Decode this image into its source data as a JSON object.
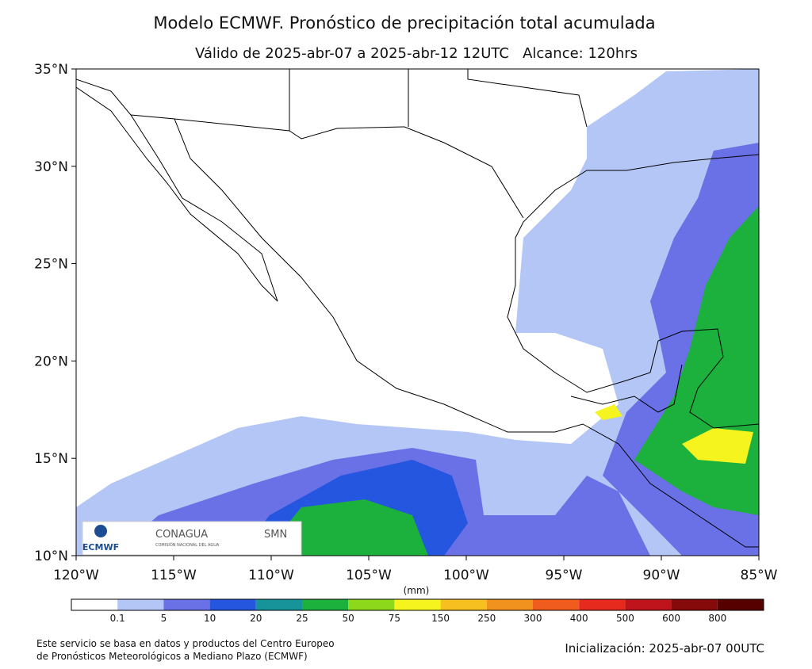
{
  "map": {
    "title": "Modelo ECMWF. Pronóstico de precipitación total acumulada",
    "subtitle": "Válido de 2025-abr-07 a 2025-abr-12 12UTC   Alcance: 120hrs",
    "xlim": [
      -120,
      -85
    ],
    "ylim": [
      10,
      35
    ],
    "xticks": [
      {
        "value": -120,
        "label": "120°W"
      },
      {
        "value": -115,
        "label": "115°W"
      },
      {
        "value": -110,
        "label": "110°W"
      },
      {
        "value": -105,
        "label": "105°W"
      },
      {
        "value": -100,
        "label": "100°W"
      },
      {
        "value": -95,
        "label": "95°W"
      },
      {
        "value": -90,
        "label": "90°W"
      },
      {
        "value": -85,
        "label": "85°W"
      }
    ],
    "yticks": [
      {
        "value": 35,
        "label": "35°N"
      },
      {
        "value": 30,
        "label": "30°N"
      },
      {
        "value": 25,
        "label": "25°N"
      },
      {
        "value": 20,
        "label": "20°N"
      },
      {
        "value": 15,
        "label": "15°N"
      },
      {
        "value": 10,
        "label": "10°N"
      }
    ],
    "colorbar": {
      "unit": "(mm)",
      "colors": [
        "#ffffff",
        "#b4c6f6",
        "#6a70e6",
        "#2456e0",
        "#16949a",
        "#1cb03c",
        "#8ed81c",
        "#f6f41e",
        "#f6c020",
        "#f2921e",
        "#f05c1e",
        "#e62a1e",
        "#c0141c",
        "#860a0a",
        "#560000"
      ],
      "labels": [
        0.1,
        5,
        10,
        20,
        25,
        50,
        75,
        150,
        250,
        300,
        400,
        500,
        600,
        800
      ]
    },
    "logos": {
      "ecmwf": "ECMWF",
      "conagua": "CONAGUA",
      "conagua_sub": "COMISIÓN NACIONAL DEL AGUA",
      "smn": "SMN"
    },
    "footer": {
      "line1": "Este servicio se basa en datos y productos del Centro Europeo",
      "line2": "de Pronósticos Meteorológicos a Mediano Plazo (ECMWF)",
      "init": "Inicialización: 2025-abr-07 00UTC"
    }
  }
}
